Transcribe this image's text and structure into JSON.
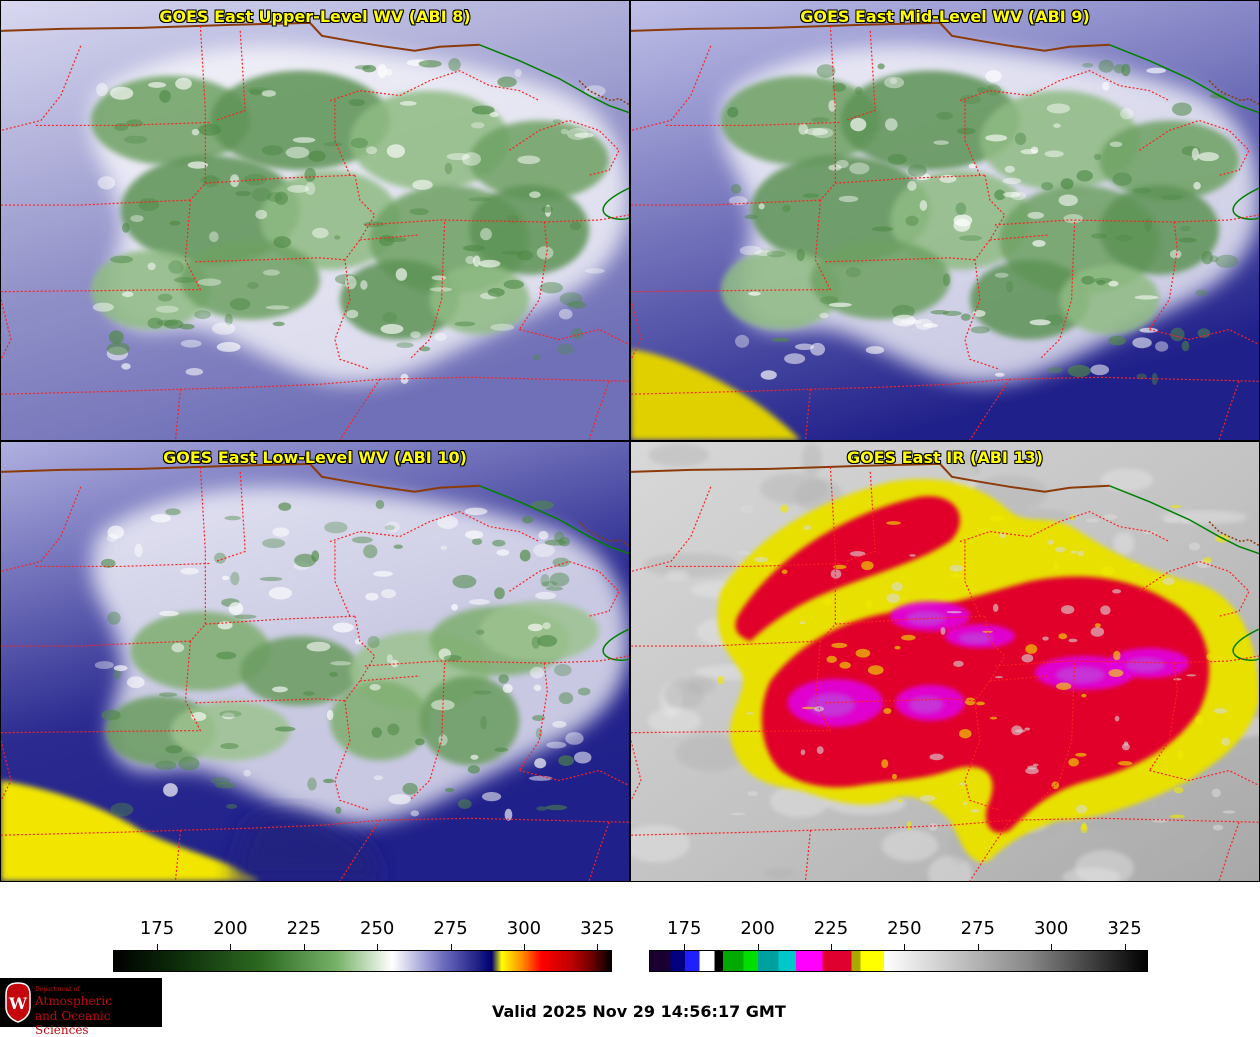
{
  "panels": [
    {
      "id": "wv8",
      "title": "GOES East Upper-Level WV (ABI 8)",
      "kind": "wv-upper"
    },
    {
      "id": "wv9",
      "title": "GOES East Mid-Level WV (ABI 9)",
      "kind": "wv-mid"
    },
    {
      "id": "wv10",
      "title": "GOES East Low-Level WV (ABI 10)",
      "kind": "wv-low"
    },
    {
      "id": "ir13",
      "title": "GOES East IR (ABI 13)",
      "kind": "ir"
    }
  ],
  "colorbar_wv": {
    "ticks": [
      "175",
      "200",
      "225",
      "250",
      "275",
      "300",
      "325"
    ],
    "tick_values": [
      175,
      200,
      225,
      250,
      275,
      300,
      325
    ],
    "range": [
      160,
      330
    ],
    "stops": [
      "#000000",
      "#0b2a08",
      "#2e6b22",
      "#78b36a",
      "#ffffff",
      "#7070c0",
      "#000070",
      "#ffff00",
      "#ff9000",
      "#ff0000",
      "#c00000",
      "#700000",
      "#200000",
      "#000000"
    ]
  },
  "colorbar_ir": {
    "ticks": [
      "175",
      "200",
      "225",
      "250",
      "275",
      "300",
      "325"
    ],
    "tick_values": [
      175,
      200,
      225,
      250,
      275,
      300,
      325
    ],
    "range": [
      163,
      333
    ],
    "segments": [
      {
        "from": 163,
        "to": 170,
        "color": "#1a0030"
      },
      {
        "from": 170,
        "to": 175,
        "color": "#000080"
      },
      {
        "from": 175,
        "to": 180,
        "color": "#2020ff"
      },
      {
        "from": 180,
        "to": 185,
        "color": "#ffffff"
      },
      {
        "from": 185,
        "to": 188,
        "color": "#000000"
      },
      {
        "from": 188,
        "to": 195,
        "color": "#00aa00"
      },
      {
        "from": 195,
        "to": 200,
        "color": "#00dd00"
      },
      {
        "from": 200,
        "to": 207,
        "color": "#00a0a0"
      },
      {
        "from": 207,
        "to": 213,
        "color": "#00c8c8"
      },
      {
        "from": 213,
        "to": 222,
        "color": "#ff00ff"
      },
      {
        "from": 222,
        "to": 232,
        "color": "#e00030"
      },
      {
        "from": 232,
        "to": 235,
        "color": "#aaaa00"
      },
      {
        "from": 235,
        "to": 243,
        "color": "#ffff00"
      },
      {
        "from": 243,
        "to": 333,
        "color": "gradient"
      }
    ]
  },
  "footer": {
    "valid_text": "Valid 2025 Nov 29 14:56:17 GMT",
    "logo_line1": "Department of",
    "logo_line2": "Atmospheric",
    "logo_line3": "and Oceanic Sciences",
    "logo_letter": "W"
  },
  "colors": {
    "state_border": "#ff2020",
    "country_border": "#8b3a0a",
    "water_border": "#008000",
    "title": "#ffff00"
  }
}
